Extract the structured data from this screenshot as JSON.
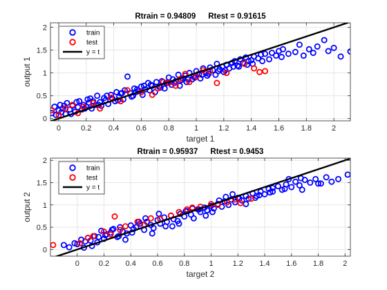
{
  "colors": {
    "train": "#0000ff",
    "test": "#ff0000",
    "identity_line": "#000000",
    "grid": "#e6e6e6",
    "axes": "#262626"
  },
  "chart_data": [
    {
      "type": "scatter",
      "title_parts": [
        "Rtrain = 0.94809",
        "Rtest = 0.91615"
      ],
      "xlabel": "target 1",
      "ylabel": "output 1",
      "xlim": [
        -0.06,
        2.12
      ],
      "ylim": [
        -0.05,
        2.1
      ],
      "xticks": [
        0,
        0.2,
        0.4,
        0.6,
        0.8,
        1,
        1.2,
        1.4,
        1.6,
        1.8,
        2
      ],
      "xtick_labels": [
        "0",
        "0.2",
        "0.4",
        "0.6",
        "0.8",
        "1",
        "1.2",
        "1.4",
        "1.6",
        "1.8",
        "2"
      ],
      "yticks": [
        0,
        0.5,
        1,
        1.5,
        2
      ],
      "ytick_labels": [
        "0",
        "0.5",
        "1",
        "1.5",
        "2"
      ],
      "grid": true,
      "legend": {
        "placement": "top-left",
        "entries": [
          {
            "label": "train",
            "kind": "marker",
            "color": "#0000ff"
          },
          {
            "label": "test",
            "kind": "marker",
            "color": "#ff0000"
          },
          {
            "label": "y = t",
            "kind": "line",
            "color": "#000000"
          }
        ]
      },
      "line": {
        "name": "y = t",
        "x": [
          -0.06,
          2.12
        ],
        "y": [
          -0.06,
          2.12
        ]
      },
      "series": [
        {
          "name": "train",
          "marker": "circle-open",
          "color": "#0000ff",
          "x": [
            -0.05,
            -0.03,
            -0.02,
            0.0,
            0.01,
            0.02,
            0.03,
            0.05,
            0.06,
            0.08,
            0.1,
            0.12,
            0.14,
            0.15,
            0.17,
            0.18,
            0.2,
            0.21,
            0.22,
            0.24,
            0.25,
            0.27,
            0.28,
            0.3,
            0.31,
            0.33,
            0.34,
            0.36,
            0.38,
            0.39,
            0.41,
            0.42,
            0.44,
            0.45,
            0.47,
            0.48,
            0.5,
            0.52,
            0.53,
            0.55,
            0.56,
            0.58,
            0.6,
            0.61,
            0.63,
            0.65,
            0.66,
            0.68,
            0.7,
            0.71,
            0.73,
            0.75,
            0.77,
            0.78,
            0.8,
            0.82,
            0.83,
            0.85,
            0.87,
            0.88,
            0.9,
            0.92,
            0.93,
            0.95,
            0.97,
            0.98,
            1.0,
            1.02,
            1.03,
            1.05,
            1.07,
            1.08,
            1.1,
            1.12,
            1.14,
            1.15,
            1.17,
            1.19,
            1.2,
            1.22,
            1.24,
            1.26,
            1.28,
            1.3,
            1.32,
            1.34,
            1.36,
            1.38,
            1.4,
            1.42,
            1.45,
            1.47,
            1.5,
            1.53,
            1.55,
            1.58,
            1.6,
            1.63,
            1.67,
            1.72,
            1.75,
            1.78,
            1.82,
            1.85,
            1.88,
            1.93,
            1.96,
            2.0,
            2.05,
            2.12,
            0.04,
            0.13,
            0.23,
            0.35,
            0.46,
            0.57,
            0.67,
            0.79,
            0.89,
            0.99,
            1.09,
            1.21,
            1.31,
            1.41,
            0.09,
            0.19,
            0.29,
            0.43,
            0.54,
            0.62,
            0.74,
            0.84,
            0.94,
            1.04,
            1.16,
            1.27,
            1.37,
            1.48,
            1.62
          ],
          "y": [
            0.12,
            0.26,
            0.08,
            0.18,
            0.3,
            0.14,
            0.22,
            0.1,
            0.34,
            0.2,
            0.28,
            0.15,
            0.25,
            0.38,
            0.2,
            0.3,
            0.26,
            0.42,
            0.35,
            0.22,
            0.38,
            0.3,
            0.5,
            0.36,
            0.28,
            0.45,
            0.4,
            0.32,
            0.52,
            0.44,
            0.38,
            0.58,
            0.48,
            0.55,
            0.42,
            0.62,
            0.92,
            0.56,
            0.48,
            0.66,
            0.58,
            0.6,
            0.7,
            0.52,
            0.64,
            0.78,
            0.62,
            0.72,
            0.58,
            0.8,
            0.7,
            0.82,
            0.66,
            0.78,
            0.9,
            0.74,
            0.86,
            0.82,
            0.96,
            0.72,
            0.88,
            0.94,
            0.8,
            1.0,
            0.86,
            0.92,
            1.04,
            0.98,
            0.88,
            1.1,
            1.0,
            0.94,
            1.12,
            1.06,
            0.96,
            1.2,
            1.08,
            1.14,
            1.02,
            1.18,
            1.1,
            1.22,
            1.26,
            1.16,
            1.3,
            1.22,
            1.34,
            1.26,
            1.28,
            1.36,
            1.32,
            1.4,
            1.42,
            1.3,
            1.44,
            1.38,
            1.48,
            1.52,
            1.42,
            1.46,
            1.62,
            1.38,
            1.52,
            1.44,
            1.58,
            1.72,
            1.48,
            1.55,
            1.36,
            1.47,
            0.28,
            0.36,
            0.44,
            0.5,
            0.56,
            0.64,
            0.74,
            0.78,
            0.84,
            0.9,
            0.98,
            1.06,
            1.14,
            1.2,
            0.1,
            0.22,
            0.3,
            0.4,
            0.5,
            0.72,
            0.68,
            0.78,
            0.86,
            0.96,
            1.04,
            1.14,
            1.18,
            1.26,
            1.35
          ]
        },
        {
          "name": "test",
          "marker": "circle-open",
          "color": "#ff0000",
          "x": [
            -0.05,
            0.0,
            0.05,
            0.1,
            0.14,
            0.18,
            0.25,
            0.3,
            0.38,
            0.45,
            0.5,
            0.6,
            0.68,
            0.72,
            0.76,
            0.8,
            0.85,
            0.88,
            0.92,
            0.95,
            1.0,
            1.05,
            1.1,
            1.15,
            1.22,
            1.35,
            1.42,
            1.46,
            1.5
          ],
          "y": [
            0.18,
            0.08,
            0.22,
            0.3,
            0.12,
            0.26,
            0.34,
            0.22,
            0.46,
            0.38,
            0.62,
            0.58,
            0.52,
            0.66,
            0.8,
            0.78,
            0.72,
            0.86,
            0.98,
            0.8,
            0.92,
            1.06,
            1.04,
            0.78,
            1.0,
            1.2,
            1.1,
            1.02,
            1.04
          ]
        }
      ]
    },
    {
      "type": "scatter",
      "title_parts": [
        "Rtrain = 0.95937",
        "Rtest = 0.9453"
      ],
      "xlabel": "target 2",
      "ylabel": "output 2",
      "xlim": [
        -0.2,
        2.04
      ],
      "ylim": [
        -0.15,
        2.05
      ],
      "xticks": [
        0,
        0.2,
        0.4,
        0.6,
        0.8,
        1,
        1.2,
        1.4,
        1.6,
        1.8,
        2
      ],
      "xtick_labels": [
        "0",
        "0.2",
        "0.4",
        "0.6",
        "0.8",
        "1",
        "1.2",
        "1.4",
        "1.6",
        "1.8",
        "2"
      ],
      "yticks": [
        0,
        0.5,
        1,
        1.5,
        2
      ],
      "ytick_labels": [
        "0",
        "0.5",
        "1",
        "1.5",
        "2"
      ],
      "grid": true,
      "legend": {
        "placement": "top-left",
        "entries": [
          {
            "label": "train",
            "kind": "marker",
            "color": "#0000ff"
          },
          {
            "label": "test",
            "kind": "marker",
            "color": "#ff0000"
          },
          {
            "label": "y = t",
            "kind": "line",
            "color": "#000000"
          }
        ]
      },
      "line": {
        "name": "y = t",
        "x": [
          -0.2,
          2.04
        ],
        "y": [
          -0.2,
          2.04
        ]
      },
      "series": [
        {
          "name": "train",
          "marker": "circle-open",
          "color": "#0000ff",
          "x": [
            -0.1,
            -0.06,
            -0.02,
            0.0,
            0.03,
            0.06,
            0.08,
            0.1,
            0.13,
            0.15,
            0.18,
            0.2,
            0.22,
            0.25,
            0.27,
            0.3,
            0.32,
            0.34,
            0.37,
            0.4,
            0.42,
            0.44,
            0.47,
            0.5,
            0.52,
            0.55,
            0.57,
            0.6,
            0.62,
            0.65,
            0.67,
            0.7,
            0.72,
            0.75,
            0.77,
            0.8,
            0.82,
            0.85,
            0.87,
            0.9,
            0.92,
            0.95,
            0.97,
            1.0,
            1.02,
            1.05,
            1.08,
            1.1,
            1.13,
            1.15,
            1.18,
            1.2,
            1.23,
            1.26,
            1.28,
            1.31,
            1.34,
            1.37,
            1.4,
            1.43,
            1.46,
            1.5,
            1.53,
            1.56,
            1.6,
            1.63,
            1.66,
            1.7,
            1.74,
            1.78,
            1.82,
            1.86,
            1.9,
            1.95,
            2.02,
            0.05,
            0.16,
            0.26,
            0.36,
            0.46,
            0.56,
            0.66,
            0.76,
            0.86,
            0.96,
            1.06,
            1.16,
            1.26,
            1.36,
            1.46,
            1.58,
            1.68,
            0.11,
            0.21,
            0.31,
            0.41,
            0.51,
            0.61,
            0.71,
            0.81,
            0.91,
            1.01,
            1.11,
            1.21,
            1.33,
            1.44,
            1.55,
            1.67,
            1.8
          ],
          "y": [
            0.1,
            0.05,
            0.14,
            0.12,
            0.22,
            0.18,
            0.26,
            0.2,
            0.3,
            0.16,
            0.42,
            0.24,
            0.34,
            0.38,
            0.46,
            0.28,
            0.5,
            0.4,
            0.36,
            0.54,
            0.46,
            0.5,
            0.58,
            0.44,
            0.62,
            0.55,
            0.48,
            0.66,
            0.58,
            0.72,
            0.62,
            0.76,
            0.68,
            0.64,
            0.8,
            0.74,
            0.86,
            0.78,
            0.7,
            0.9,
            0.84,
            0.94,
            0.88,
            0.98,
            0.92,
            1.02,
            0.96,
            1.08,
            1.0,
            1.12,
            1.06,
            1.16,
            1.1,
            1.2,
            1.14,
            1.26,
            1.2,
            1.3,
            1.24,
            1.36,
            1.3,
            1.42,
            1.34,
            1.46,
            1.4,
            1.52,
            1.44,
            1.56,
            1.5,
            1.58,
            1.48,
            1.62,
            1.52,
            1.58,
            1.68,
            0.04,
            0.28,
            0.44,
            0.22,
            0.62,
            0.36,
            0.52,
            0.58,
            0.92,
            0.76,
            1.1,
            1.24,
            1.02,
            1.22,
            1.38,
            1.58,
            1.34,
            0.08,
            0.32,
            0.3,
            0.38,
            0.7,
            0.8,
            0.52,
            0.86,
            0.9,
            0.84,
            1.18,
            1.14,
            1.16,
            1.28,
            1.36,
            1.6,
            1.48
          ]
        },
        {
          "name": "test",
          "marker": "circle-open",
          "color": "#ff0000",
          "x": [
            -0.18,
            0.02,
            0.08,
            0.12,
            0.2,
            0.25,
            0.28,
            0.32,
            0.36,
            0.45,
            0.5,
            0.55,
            0.62,
            0.7,
            0.76,
            0.82,
            0.86,
            0.92,
            1.0,
            1.05,
            1.12,
            1.18,
            1.22,
            1.3
          ],
          "y": [
            0.1,
            0.14,
            0.26,
            0.3,
            0.4,
            0.34,
            0.74,
            0.44,
            0.52,
            0.62,
            0.56,
            0.7,
            0.68,
            0.76,
            0.84,
            0.9,
            0.94,
            0.96,
            1.02,
            1.0,
            1.06,
            1.12,
            1.04,
            1.14
          ]
        }
      ]
    }
  ]
}
